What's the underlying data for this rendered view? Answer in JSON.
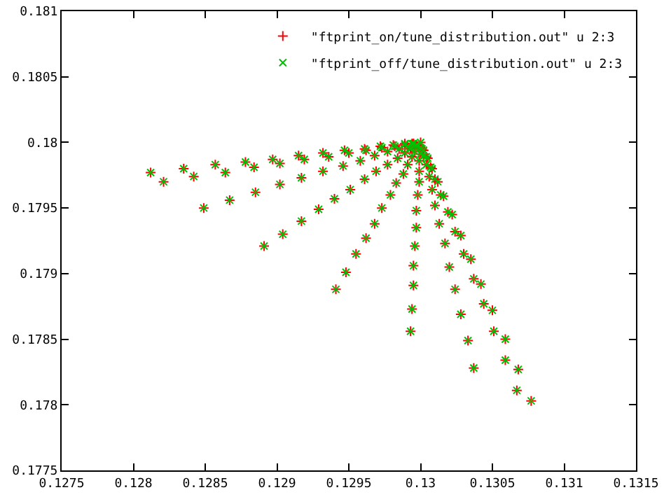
{
  "chart_data": {
    "type": "scatter",
    "xlim": [
      0.1275,
      0.1315
    ],
    "xticks": [
      0.1275,
      0.128,
      0.1285,
      0.129,
      0.1295,
      0.13,
      0.1305,
      0.131,
      0.1315
    ],
    "ylim": [
      0.1775,
      0.181
    ],
    "yticks": [
      0.1775,
      0.178,
      0.1785,
      0.179,
      0.1795,
      0.18,
      0.1805,
      0.181
    ],
    "grid": false,
    "legend": "top right",
    "series": [
      {
        "name": "\"ftprint_on/tune_distribution.out\" u 2:3",
        "color": "#ff0000",
        "marker": "cross",
        "x": [
          0.12812,
          0.12835,
          0.12857,
          0.12878,
          0.12897,
          0.12915,
          0.12932,
          0.12947,
          0.12961,
          0.12972,
          0.12981,
          0.12989,
          0.12994,
          0.12821,
          0.12842,
          0.12864,
          0.12884,
          0.12902,
          0.12919,
          0.12936,
          0.1295,
          0.12962,
          0.12973,
          0.12982,
          0.12989,
          0.12995,
          0.12849,
          0.12867,
          0.12885,
          0.12902,
          0.12917,
          0.12932,
          0.12946,
          0.12958,
          0.12968,
          0.12977,
          0.12985,
          0.12991,
          0.12995,
          0.12891,
          0.12904,
          0.12917,
          0.12929,
          0.1294,
          0.12951,
          0.12961,
          0.12969,
          0.12977,
          0.12984,
          0.12989,
          0.12993,
          0.12997,
          0.12941,
          0.12948,
          0.12955,
          0.12962,
          0.12968,
          0.12973,
          0.12979,
          0.12983,
          0.12988,
          0.12991,
          0.12994,
          0.12996,
          0.12998,
          0.12993,
          0.12994,
          0.12995,
          0.12995,
          0.12996,
          0.12997,
          0.12997,
          0.12998,
          0.12999,
          0.12999,
          0.12999,
          0.13,
          0.13,
          0.13037,
          0.13033,
          0.13028,
          0.13024,
          0.1302,
          0.13017,
          0.13013,
          0.1301,
          0.13008,
          0.13006,
          0.13004,
          0.13002,
          0.13001,
          0.13067,
          0.13059,
          0.13051,
          0.13044,
          0.13037,
          0.1303,
          0.13024,
          0.13019,
          0.13014,
          0.1301,
          0.13007,
          0.13004,
          0.13002,
          0.13077,
          0.13068,
          0.13059,
          0.1305,
          0.13042,
          0.13035,
          0.13028,
          0.13022,
          0.13016,
          0.13012,
          0.13008,
          0.13005,
          0.13002,
          0.13
        ],
        "values": [
          0.17977,
          0.1798,
          0.17983,
          0.17985,
          0.17987,
          0.1799,
          0.17992,
          0.17994,
          0.17995,
          0.17997,
          0.17998,
          0.17999,
          0.17999,
          0.1797,
          0.17974,
          0.17977,
          0.17981,
          0.17984,
          0.17987,
          0.17989,
          0.17992,
          0.17994,
          0.17996,
          0.17997,
          0.17998,
          0.17999,
          0.1795,
          0.17956,
          0.17962,
          0.17968,
          0.17973,
          0.17978,
          0.17982,
          0.17986,
          0.1799,
          0.17993,
          0.17995,
          0.17997,
          0.17999,
          0.17921,
          0.1793,
          0.1794,
          0.17949,
          0.17957,
          0.17964,
          0.17972,
          0.17978,
          0.17983,
          0.17988,
          0.17992,
          0.17995,
          0.17998,
          0.17888,
          0.17901,
          0.17915,
          0.17927,
          0.17938,
          0.1795,
          0.1796,
          0.17969,
          0.17976,
          0.17983,
          0.17989,
          0.17993,
          0.17997,
          0.17856,
          0.17873,
          0.17891,
          0.17906,
          0.17921,
          0.17935,
          0.17948,
          0.1796,
          0.1797,
          0.17978,
          0.17986,
          0.17991,
          0.17996,
          0.17828,
          0.17849,
          0.17869,
          0.17888,
          0.17905,
          0.17923,
          0.17938,
          0.17952,
          0.17964,
          0.17974,
          0.17983,
          0.1799,
          0.17995,
          0.17811,
          0.17834,
          0.17856,
          0.17877,
          0.17896,
          0.17915,
          0.17932,
          0.17947,
          0.1796,
          0.17972,
          0.17981,
          0.17989,
          0.17994,
          0.17803,
          0.17827,
          0.1785,
          0.17872,
          0.17892,
          0.17911,
          0.17929,
          0.17945,
          0.17959,
          0.1797,
          0.1798,
          0.17988,
          0.17994,
          0.18
        ]
      },
      {
        "name": "\"ftprint_off/tune_distribution.out\" u 2:3",
        "color": "#00c000",
        "marker": "x",
        "x": [
          0.12812,
          0.12835,
          0.12857,
          0.12878,
          0.12897,
          0.12915,
          0.12932,
          0.12947,
          0.12961,
          0.12972,
          0.12981,
          0.12989,
          0.12994,
          0.12821,
          0.12842,
          0.12864,
          0.12884,
          0.12902,
          0.12919,
          0.12936,
          0.1295,
          0.12962,
          0.12973,
          0.12982,
          0.12989,
          0.12995,
          0.12849,
          0.12867,
          0.12885,
          0.12902,
          0.12917,
          0.12932,
          0.12946,
          0.12958,
          0.12968,
          0.12977,
          0.12985,
          0.12991,
          0.12995,
          0.12891,
          0.12904,
          0.12917,
          0.12929,
          0.1294,
          0.12951,
          0.12961,
          0.12969,
          0.12977,
          0.12984,
          0.12989,
          0.12993,
          0.12997,
          0.12941,
          0.12948,
          0.12955,
          0.12962,
          0.12968,
          0.12973,
          0.12979,
          0.12983,
          0.12988,
          0.12991,
          0.12994,
          0.12996,
          0.12998,
          0.12993,
          0.12994,
          0.12995,
          0.12995,
          0.12996,
          0.12997,
          0.12997,
          0.12998,
          0.12999,
          0.12999,
          0.12999,
          0.13,
          0.13,
          0.13037,
          0.13033,
          0.13028,
          0.13024,
          0.1302,
          0.13017,
          0.13013,
          0.1301,
          0.13008,
          0.13006,
          0.13004,
          0.13002,
          0.13001,
          0.13067,
          0.13059,
          0.13051,
          0.13044,
          0.13037,
          0.1303,
          0.13024,
          0.13019,
          0.13014,
          0.1301,
          0.13007,
          0.13004,
          0.13002,
          0.13077,
          0.13068,
          0.13059,
          0.1305,
          0.13042,
          0.13035,
          0.13028,
          0.13022,
          0.13016,
          0.13012,
          0.13008,
          0.13005,
          0.13002,
          0.13
        ],
        "values": [
          0.17977,
          0.1798,
          0.17983,
          0.17985,
          0.17987,
          0.1799,
          0.17992,
          0.17994,
          0.17995,
          0.17997,
          0.17998,
          0.17999,
          0.17999,
          0.1797,
          0.17974,
          0.17977,
          0.17981,
          0.17984,
          0.17987,
          0.17989,
          0.17992,
          0.17994,
          0.17996,
          0.17997,
          0.17998,
          0.17999,
          0.1795,
          0.17956,
          0.17962,
          0.17968,
          0.17973,
          0.17978,
          0.17982,
          0.17986,
          0.1799,
          0.17993,
          0.17995,
          0.17997,
          0.17999,
          0.17921,
          0.1793,
          0.1794,
          0.17949,
          0.17957,
          0.17964,
          0.17972,
          0.17978,
          0.17983,
          0.17988,
          0.17992,
          0.17995,
          0.17998,
          0.17888,
          0.17901,
          0.17915,
          0.17927,
          0.17938,
          0.1795,
          0.1796,
          0.17969,
          0.17976,
          0.17983,
          0.17989,
          0.17993,
          0.17997,
          0.17856,
          0.17873,
          0.17891,
          0.17906,
          0.17921,
          0.17935,
          0.17948,
          0.1796,
          0.1797,
          0.17978,
          0.17986,
          0.17991,
          0.17996,
          0.17828,
          0.17849,
          0.17869,
          0.17888,
          0.17905,
          0.17923,
          0.17938,
          0.17952,
          0.17964,
          0.17974,
          0.17983,
          0.1799,
          0.17995,
          0.17811,
          0.17834,
          0.17856,
          0.17877,
          0.17896,
          0.17915,
          0.17932,
          0.17947,
          0.1796,
          0.17972,
          0.17981,
          0.17989,
          0.17994,
          0.17803,
          0.17827,
          0.1785,
          0.17872,
          0.17892,
          0.17911,
          0.17929,
          0.17945,
          0.17959,
          0.1797,
          0.1798,
          0.17988,
          0.17994,
          0.18
        ]
      }
    ]
  }
}
